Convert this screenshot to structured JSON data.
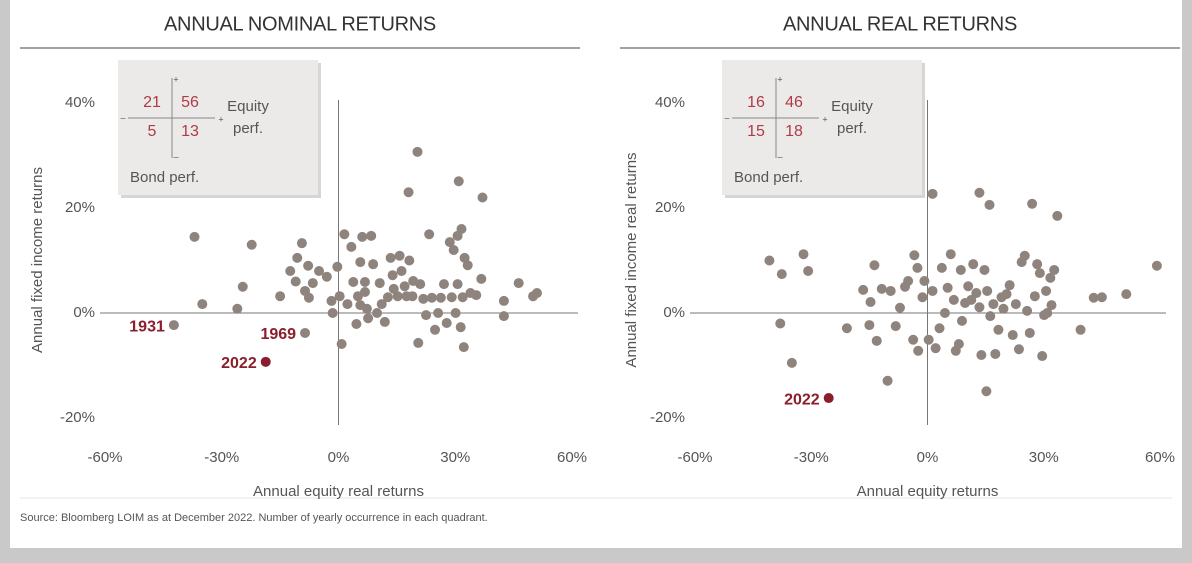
{
  "chart_data": [
    {
      "type": "scatter",
      "title": "ANNUAL NOMINAL RETURNS",
      "x_label": "Annual equity real returns",
      "y_label": "Annual fixed income returns",
      "color": "#8f847d",
      "xlim": [
        -60,
        60
      ],
      "ylim": [
        -20,
        40
      ],
      "xticks": [
        {
          "value": -60,
          "label": "-60%"
        },
        {
          "value": -30,
          "label": "-30%"
        },
        {
          "value": 0,
          "label": "0%"
        },
        {
          "value": 30,
          "label": "30%"
        },
        {
          "value": 60,
          "label": "60%"
        }
      ],
      "yticks": [
        {
          "value": -20,
          "label": "-20%"
        },
        {
          "value": 0,
          "label": "0%"
        },
        {
          "value": 20,
          "label": "20%"
        },
        {
          "value": 40,
          "label": "40%"
        }
      ],
      "x": [
        -37,
        -35,
        -26,
        -24.6,
        -22.3,
        -15,
        -12.4,
        -11,
        -10.6,
        -9.4,
        -8.6,
        -7.8,
        -7.6,
        -6.6,
        -5,
        -3,
        -1.8,
        -1.5,
        -0.3,
        0.3,
        0.8,
        1.5,
        2.3,
        3.3,
        3.8,
        4.6,
        5,
        5.6,
        5.6,
        6.1,
        6.8,
        6.8,
        7.3,
        7.6,
        8.4,
        8.9,
        9.9,
        10.6,
        11.1,
        11.9,
        12.7,
        13.4,
        13.9,
        14.2,
        15.2,
        15.7,
        16.2,
        17,
        17.5,
        18,
        18.2,
        19,
        19.2,
        20.3,
        20.5,
        21,
        21.8,
        22.5,
        23.3,
        24,
        24.8,
        25.6,
        26.3,
        27.1,
        27.8,
        28.6,
        29.1,
        29.6,
        30.1,
        30.6,
        30.6,
        30.9,
        31.4,
        31.6,
        31.9,
        32.2,
        32.4,
        33.2,
        33.9,
        35.4,
        36.7,
        37,
        42.5,
        42.5,
        46.3,
        50,
        51
      ],
      "values": [
        14.5,
        1.7,
        0.8,
        5,
        13,
        3.2,
        8,
        6,
        10.5,
        13.3,
        4.2,
        9,
        2.9,
        5.7,
        8,
        6.9,
        2.3,
        0,
        8.8,
        3.2,
        -5.9,
        15,
        1.7,
        12.6,
        5.9,
        -2.1,
        3.2,
        9.7,
        1.5,
        14.5,
        5.9,
        4,
        0.8,
        -1,
        14.7,
        9.3,
        0,
        5.7,
        1.7,
        -1.7,
        3,
        10.5,
        7.2,
        4.6,
        3.2,
        10.9,
        8,
        5.1,
        3.2,
        23,
        10,
        3.2,
        6.1,
        30.7,
        -5.7,
        5.5,
        2.7,
        -0.4,
        15,
        2.9,
        -3.2,
        0,
        2.9,
        5.5,
        -1.9,
        13.5,
        3,
        12,
        0,
        5.5,
        14.7,
        25.1,
        -2.7,
        16,
        3,
        -6.5,
        10.5,
        9.1,
        3.8,
        3.4,
        6.5,
        22,
        2.3,
        -0.6,
        5.7,
        3.2,
        3.8
      ],
      "annotations": [
        {
          "text": "1931",
          "x": -42.3,
          "y": -2.3,
          "color": "#8f847d"
        },
        {
          "text": "1969",
          "x": -8.6,
          "y": -3.8,
          "color": "#8f847d"
        },
        {
          "text": "2022",
          "x": -18.7,
          "y": -9.3,
          "color": "#8b1e2d"
        }
      ],
      "inset": {
        "counts": [
          21,
          56,
          5,
          13
        ],
        "equity": [
          "Equity",
          "perf."
        ],
        "bond": "Bond perf.",
        "signs": [
          "+",
          "–",
          "–",
          "+"
        ]
      }
    },
    {
      "type": "scatter",
      "title": "ANNUAL REAL RETURNS",
      "x_label": "Annual equity returns",
      "y_label": "Annual fixed income real returns",
      "color": "#8f847d",
      "xlim": [
        -60,
        60
      ],
      "ylim": [
        -20,
        40
      ],
      "xticks": [
        {
          "value": -60,
          "label": "-60%"
        },
        {
          "value": -30,
          "label": "-30%"
        },
        {
          "value": 0,
          "label": "0%"
        },
        {
          "value": 30,
          "label": "30%"
        },
        {
          "value": 60,
          "label": "60%"
        }
      ],
      "yticks": [
        {
          "value": -20,
          "label": "-20%"
        },
        {
          "value": 0,
          "label": "0%"
        },
        {
          "value": 20,
          "label": "20%"
        },
        {
          "value": 40,
          "label": "40%"
        }
      ],
      "x": [
        -40.8,
        -37.6,
        -38,
        -35,
        -32,
        -30.8,
        -20.8,
        -16.6,
        -15,
        -14.7,
        -13.7,
        -13.1,
        -11.8,
        -10.3,
        -9.5,
        -8.2,
        -7.1,
        -5.8,
        -5,
        -3.7,
        -3.4,
        -2.6,
        -2.4,
        -1.3,
        -0.8,
        0.3,
        1.3,
        1.3,
        2.1,
        3.1,
        3.7,
        4.5,
        5.2,
        6,
        6.8,
        7.3,
        8.1,
        8.6,
        8.9,
        9.7,
        10.5,
        11.3,
        11.8,
        12.6,
        13.4,
        13.4,
        13.9,
        14.7,
        15.2,
        15.4,
        16,
        16.2,
        17,
        17.5,
        18.3,
        19.1,
        19.6,
        20.4,
        21.2,
        22,
        22.8,
        23.6,
        24.3,
        25.1,
        25.7,
        26.4,
        27,
        27.7,
        28.3,
        29,
        29.6,
        30.1,
        30.6,
        30.9,
        31.7,
        32,
        32.7,
        33.5,
        39.5,
        42.9,
        45,
        51.3,
        59.2
      ],
      "values": [
        10,
        7.4,
        -2,
        -9.5,
        11.2,
        8,
        -2.9,
        4.4,
        -2.3,
        2.1,
        9.1,
        -5.3,
        4.6,
        -12.9,
        4.2,
        -2.5,
        1,
        5,
        6.1,
        -5.1,
        11,
        8.6,
        -7.2,
        3,
        6.1,
        -5.1,
        4.2,
        22.7,
        -6.7,
        -2.9,
        8.6,
        0,
        4.8,
        11.2,
        2.5,
        -7.2,
        -5.9,
        8.2,
        -1.5,
        1.9,
        5.1,
        2.5,
        9.3,
        3.8,
        22.9,
        1.1,
        -8,
        8.2,
        -14.9,
        4.2,
        20.6,
        -0.6,
        1.7,
        -7.8,
        -3.2,
        3,
        0.8,
        3.6,
        5.3,
        -4.2,
        1.7,
        -6.9,
        9.7,
        10.9,
        0.4,
        -3.8,
        20.8,
        3.2,
        9.3,
        7.6,
        -8.2,
        -0.4,
        4.2,
        0,
        6.7,
        1.5,
        8.2,
        18.5,
        -3.2,
        2.9,
        3,
        3.6,
        9
      ],
      "annotations": [
        {
          "text": "2022",
          "x": -25.5,
          "y": -16.2,
          "color": "#8b1e2d"
        }
      ],
      "inset": {
        "counts": [
          16,
          46,
          15,
          18
        ],
        "equity": [
          "Equity",
          "perf."
        ],
        "bond": "Bond perf.",
        "signs": [
          "+",
          "–",
          "–",
          "+"
        ]
      }
    }
  ],
  "source": "Source: Bloomberg LOIM as at December 2022. Number of yearly occurrence in each quadrant."
}
